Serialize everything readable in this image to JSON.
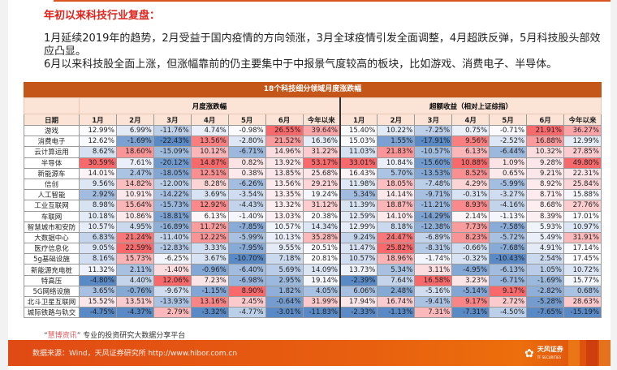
{
  "heading": "年初以来科技行业复盘：",
  "intro": {
    "p1": "1月延续2019年的趋势，2月受益于国内疫情的方向领涨，3月全球疫情引发全面调整，4月超跌反弹，5月科技股头部效应凸显。",
    "p2": "6月以来科技股全面上涨，但涨幅靠前的仍主要集中于中报景气度较高的板块，比如游戏、消费电子、半导体。"
  },
  "table": {
    "title": "18个科技细分领域月度涨跌幅",
    "group_left": "月度涨跌幅",
    "group_right": "超额收益（相对上证综指）",
    "row_header": "日期",
    "columns": [
      "1月",
      "2月",
      "3月",
      "4月",
      "5月",
      "6月",
      "今年以来",
      "1月",
      "2月",
      "3月",
      "4月",
      "5月",
      "6月",
      "今年以来"
    ],
    "rows": [
      {
        "name": "游戏",
        "values": [
          "12.99%",
          "6.99%",
          "-11.76%",
          "4.74%",
          "-0.98%",
          "26.55%",
          "39.64%",
          "15.40%",
          "10.22%",
          "-7.25%",
          "0.75%",
          "-0.71%",
          "21.91%",
          "36.27%"
        ]
      },
      {
        "name": "消费电子",
        "values": [
          "12.62%",
          "-1.69%",
          "-22.43%",
          "13.56%",
          "-2.80%",
          "21.52%",
          "16.36%",
          "15.03%",
          "1.55%",
          "-17.91%",
          "9.56%",
          "-2.52%",
          "16.88%",
          "12.99%"
        ]
      },
      {
        "name": "云计算运用",
        "values": [
          "8.62%",
          "18.60%",
          "-15.09%",
          "10.12%",
          "-6.71%",
          "14.96%",
          "31.22%",
          "11.03%",
          "21.83%",
          "-10.57%",
          "6.13%",
          "-6.44%",
          "10.32%",
          "27.85%"
        ]
      },
      {
        "name": "半导体",
        "values": [
          "30.59%",
          "7.61%",
          "-20.12%",
          "14.87%",
          "0.82%",
          "13.92%",
          "53.17%",
          "33.01%",
          "10.84%",
          "-15.60%",
          "10.88%",
          "1.09%",
          "9.28%",
          "49.80%"
        ]
      },
      {
        "name": "新能源车",
        "values": [
          "14.01%",
          "2.47%",
          "-18.05%",
          "12.51%",
          "0.38%",
          "13.85%",
          "25.68%",
          "16.43%",
          "5.70%",
          "-13.53%",
          "8.52%",
          "0.65%",
          "9.21%",
          "22.31%"
        ]
      },
      {
        "name": "信创",
        "values": [
          "9.56%",
          "14.82%",
          "-12.00%",
          "8.28%",
          "-6.26%",
          "13.56%",
          "29.21%",
          "11.98%",
          "18.05%",
          "-7.48%",
          "4.29%",
          "-5.99%",
          "8.92%",
          "25.84%"
        ]
      },
      {
        "name": "人工智能",
        "values": [
          "2.92%",
          "10.91%",
          "-14.22%",
          "3.69%",
          "-3.54%",
          "13.35%",
          "19.24%",
          "5.34%",
          "14.14%",
          "-9.71%",
          "-0.31%",
          "-3.27%",
          "8.71%",
          "15.88%"
        ]
      },
      {
        "name": "工业互联网",
        "values": [
          "8.98%",
          "15.64%",
          "-15.73%",
          "12.92%",
          "-4.43%",
          "13.32%",
          "31.12%",
          "11.39%",
          "18.87%",
          "-11.21%",
          "8.93%",
          "-4.16%",
          "8.68%",
          "27.76%"
        ]
      },
      {
        "name": "车联网",
        "values": [
          "10.18%",
          "10.86%",
          "-18.81%",
          "6.13%",
          "-1.40%",
          "13.03%",
          "20.38%",
          "12.59%",
          "14.10%",
          "-14.29%",
          "2.14%",
          "-1.13%",
          "8.39%",
          "17.01%"
        ]
      },
      {
        "name": "智慧城市和安防",
        "values": [
          "10.57%",
          "4.95%",
          "-16.89%",
          "11.72%",
          "-7.85%",
          "10.57%",
          "14.34%",
          "12.99%",
          "8.18%",
          "-12.38%",
          "7.73%",
          "-7.58%",
          "5.93%",
          "10.97%"
        ]
      },
      {
        "name": "大数据中心",
        "values": [
          "6.83%",
          "21.24%",
          "-11.40%",
          "12.22%",
          "-5.99%",
          "10.13%",
          "35.28%",
          "9.24%",
          "24.47%",
          "-6.89%",
          "8.23%",
          "-5.72%",
          "5.49%",
          "31.91%"
        ]
      },
      {
        "name": "医疗信息化",
        "values": [
          "9.05%",
          "22.59%",
          "-12.83%",
          "3.33%",
          "-7.95%",
          "9.55%",
          "20.51%",
          "11.47%",
          "25.82%",
          "-8.31%",
          "-0.66%",
          "-7.68%",
          "4.91%",
          "17.14%"
        ]
      },
      {
        "name": "5g基础设施",
        "values": [
          "8.16%",
          "15.73%",
          "-6.25%",
          "3.67%",
          "-10.70%",
          "7.18%",
          "20.81%",
          "10.57%",
          "18.96%",
          "-1.74%",
          "-0.32%",
          "-10.43%",
          "2.54%",
          "17.45%"
        ]
      },
      {
        "name": "新能源充电桩",
        "values": [
          "11.32%",
          "2.11%",
          "-1.40%",
          "-0.96%",
          "-6.40%",
          "5.69%",
          "14.09%",
          "13.73%",
          "5.34%",
          "3.11%",
          "-4.95%",
          "-6.13%",
          "1.05%",
          "10.72%"
        ]
      },
      {
        "name": "特高压",
        "values": [
          "-4.80%",
          "4.40%",
          "12.06%",
          "7.23%",
          "-6.98%",
          "2.95%",
          "19.14%",
          "-2.39%",
          "7.64%",
          "16.58%",
          "3.23%",
          "-6.71%",
          "-1.69%",
          "15.77%"
        ]
      },
      {
        "name": "5G网络设施",
        "values": [
          "3.65%",
          "-0.76%",
          "-9.67%",
          "-1.15%",
          "8.90%",
          "1.82%",
          "4.05%",
          "6.06%",
          "2.48%",
          "-5.16%",
          "-5.14%",
          "9.17%",
          "-2.82%",
          "0.68%"
        ]
      },
      {
        "name": "北斗卫星互联网",
        "values": [
          "15.52%",
          "13.51%",
          "-13.93%",
          "13.16%",
          "2.45%",
          "-0.64%",
          "31.99%",
          "17.94%",
          "16.74%",
          "-9.41%",
          "9.17%",
          "2.72%",
          "-5.28%",
          "28.63%"
        ]
      },
      {
        "name": "城际铁路与轨交",
        "values": [
          "-4.75%",
          "-4.37%",
          "2.79%",
          "-3.32%",
          "-4.77%",
          "-3.01%",
          "-11.83%",
          "-2.33%",
          "-1.13%",
          "7.31%",
          "-7.31%",
          "-4.50%",
          "-7.65%",
          "-15.19%"
        ]
      }
    ]
  },
  "colors": {
    "accent": "#c5561a",
    "heading_red": "#e0231c",
    "header_fill": "#fbe3d6",
    "heat_high": "#f8696b",
    "heat_mid": "#fcfcff",
    "heat_low": "#5a8ac6"
  },
  "source": {
    "quote_open": "“",
    "brand": "慧博资讯",
    "quote_close": "”",
    "text": "专业的投资研究大数据分享平台"
  },
  "footer": {
    "text": "数据来源：Wind，天风证券研究所  http://www.hibor.com.cn",
    "logo_name": "天风证券",
    "logo_sub": "TF SECURITIES"
  }
}
